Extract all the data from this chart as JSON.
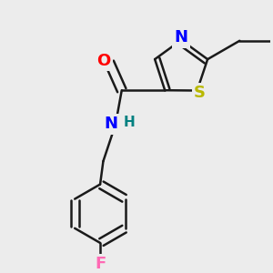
{
  "bg_color": "#ececec",
  "bond_color": "#1a1a1a",
  "bond_width": 1.8,
  "atom_colors": {
    "O": "#ff0000",
    "N": "#0000ff",
    "S": "#b8b800",
    "F": "#ff69b4",
    "H_label": "#008080"
  },
  "font_size_atom": 13,
  "font_size_h": 11
}
